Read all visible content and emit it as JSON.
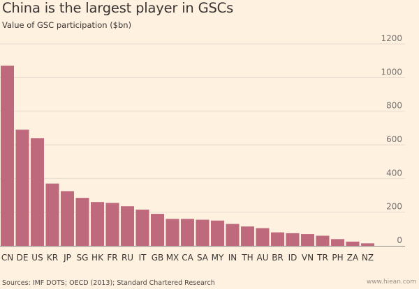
{
  "header": {
    "title": "China is the largest player in GSCs",
    "subtitle": "Value of GSC participation ($bn)"
  },
  "footer": {
    "source": "Sources: IMF DOTS; OECD (2013); Standard Chartered Research",
    "watermark": "www.hiean.com"
  },
  "colors": {
    "bar": "#bf697d",
    "grid": "#e6d9ce",
    "baseline": "#8c8682",
    "background": "#fff1e0"
  },
  "chart_data": {
    "type": "bar",
    "title": "China is the largest player in GSCs",
    "subtitle": "Value of GSC participation ($bn)",
    "categories": [
      "CN",
      "DE",
      "US",
      "KR",
      "JP",
      "SG",
      "HK",
      "FR",
      "RU",
      "IT",
      "GB",
      "MX",
      "CA",
      "SA",
      "MY",
      "IN",
      "TH",
      "AU",
      "BR",
      "ID",
      "VN",
      "TR",
      "PH",
      "ZA",
      "NZ"
    ],
    "values": [
      1070,
      690,
      640,
      370,
      325,
      285,
      260,
      255,
      235,
      215,
      190,
      160,
      160,
      155,
      150,
      130,
      115,
      105,
      80,
      75,
      70,
      60,
      40,
      25,
      15
    ],
    "ylim": [
      0,
      1200
    ],
    "yticks": [
      0,
      200,
      400,
      600,
      800,
      1000,
      1200
    ],
    "grid": true,
    "y_axis_side": "right",
    "xlabel": "",
    "ylabel": ""
  }
}
